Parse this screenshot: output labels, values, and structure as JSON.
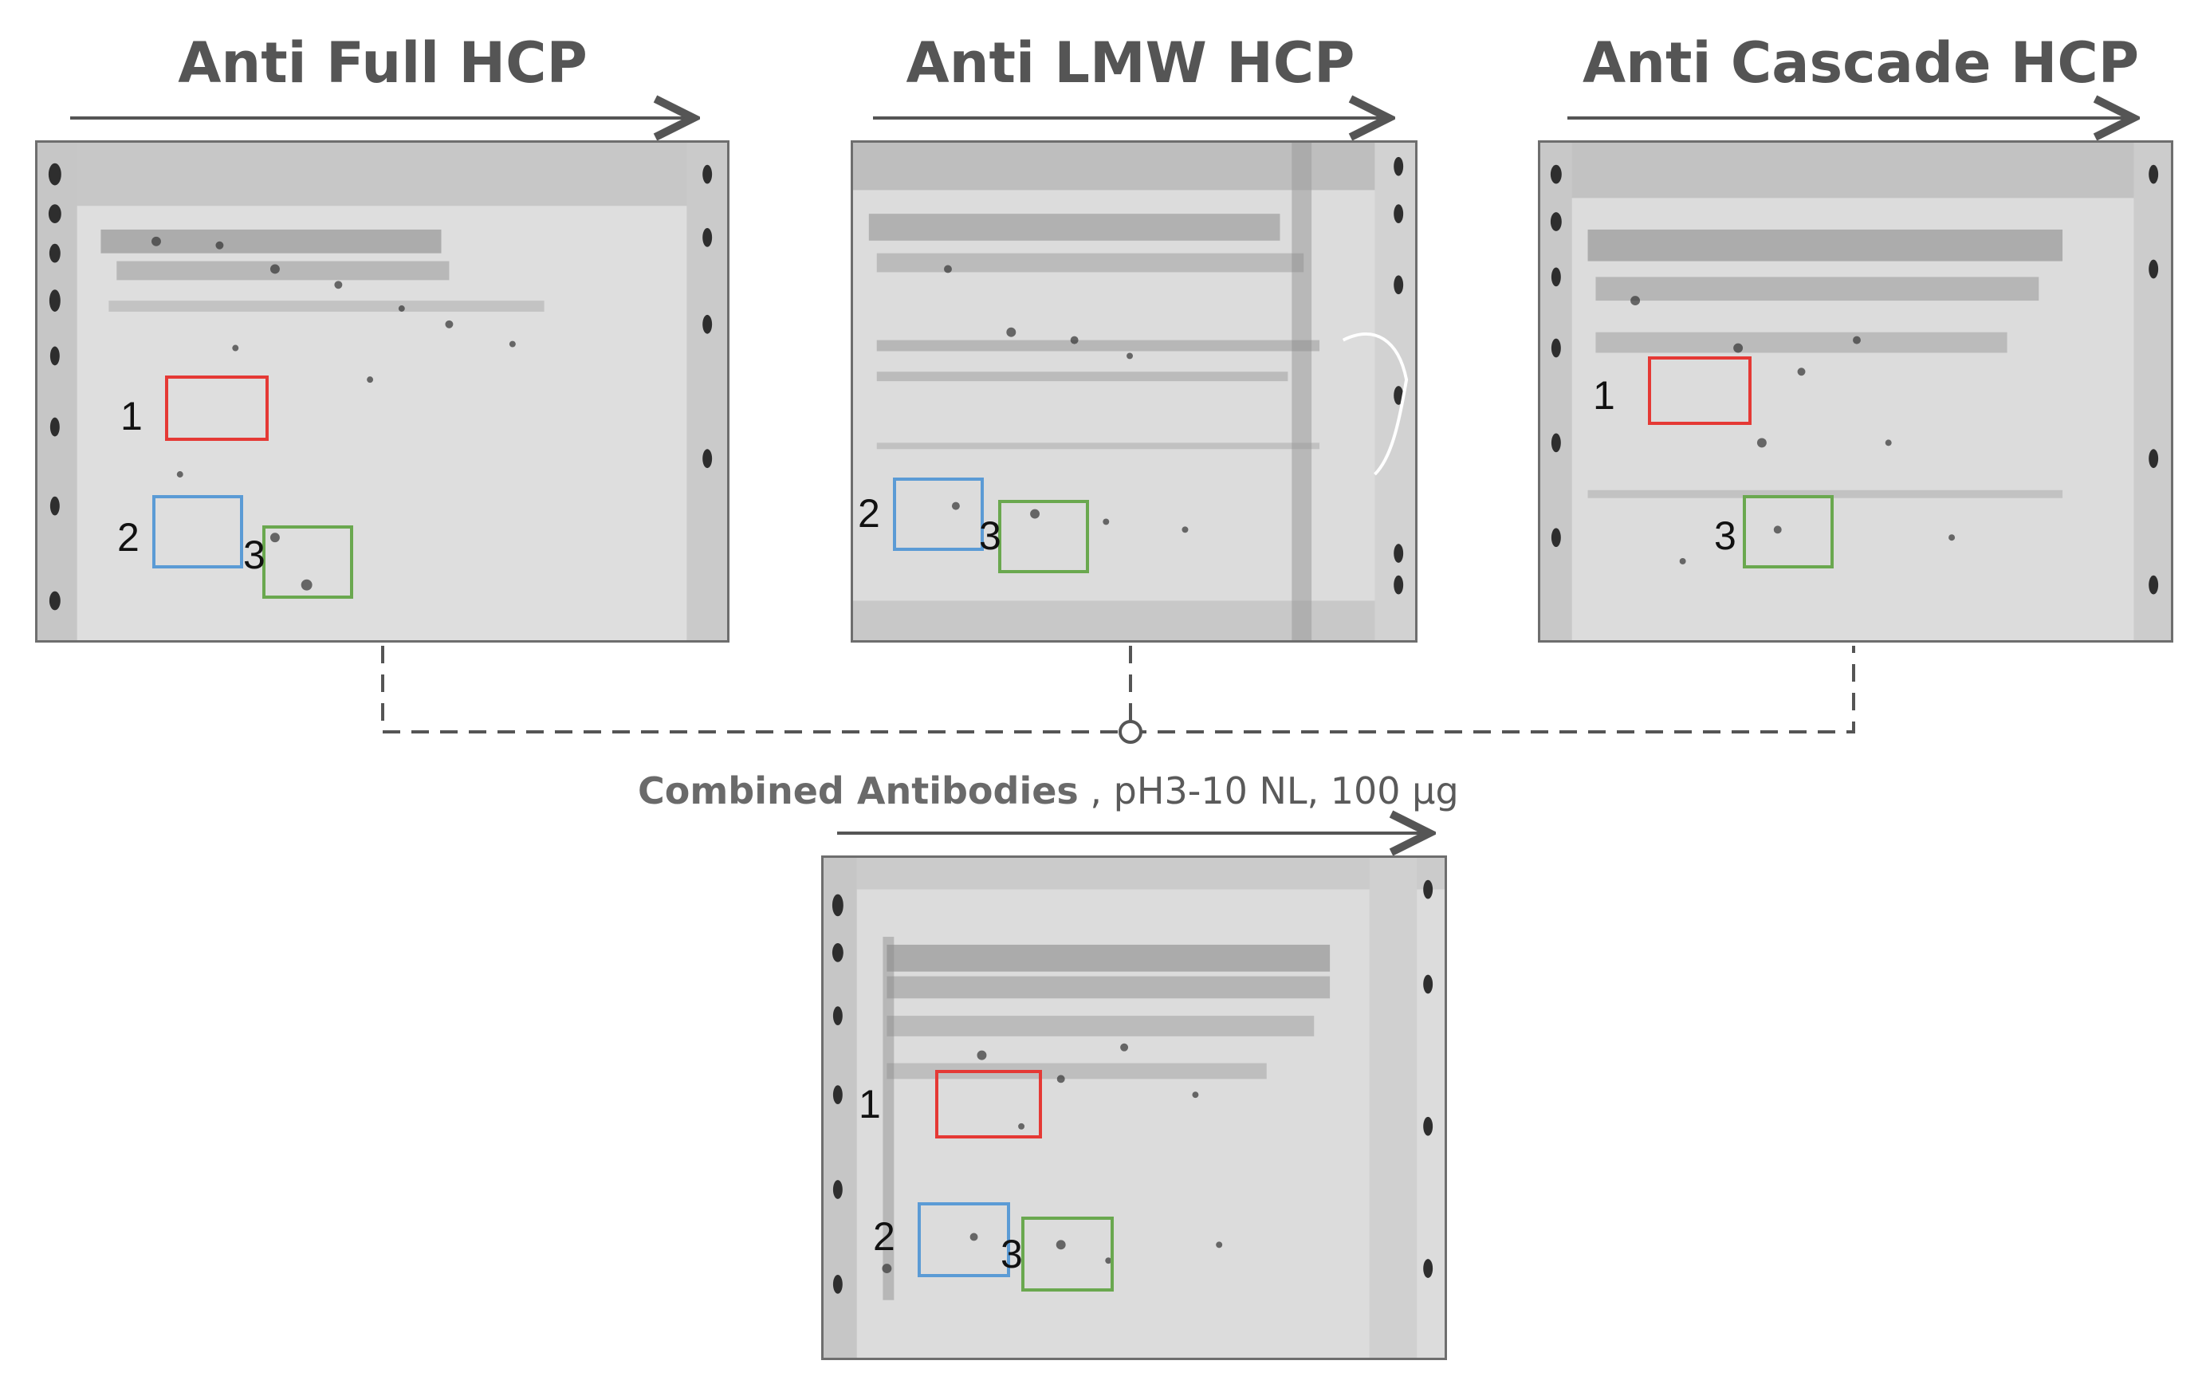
{
  "panels": [
    {
      "title": "Anti Full HCP",
      "labels": {
        "1": "1",
        "2": "2",
        "3": "3"
      }
    },
    {
      "title": "Anti LMW HCP",
      "labels": {
        "2": "2",
        "3": "3"
      }
    },
    {
      "title": "Anti Cascade HCP",
      "labels": {
        "1": "1",
        "3": "3"
      }
    }
  ],
  "combined": {
    "title_bold": "Combined Antibodies",
    "title_rest": " , pH3-10 NL, 100 µg",
    "labels": {
      "1": "1",
      "2": "2",
      "3": "3"
    }
  },
  "colors": {
    "roi_1": "#e53935",
    "roi_2": "#5b9bd5",
    "roi_3": "#6aa84f",
    "text": "#555555",
    "connector": "#555555",
    "gel_background": "#dcdcdc"
  }
}
